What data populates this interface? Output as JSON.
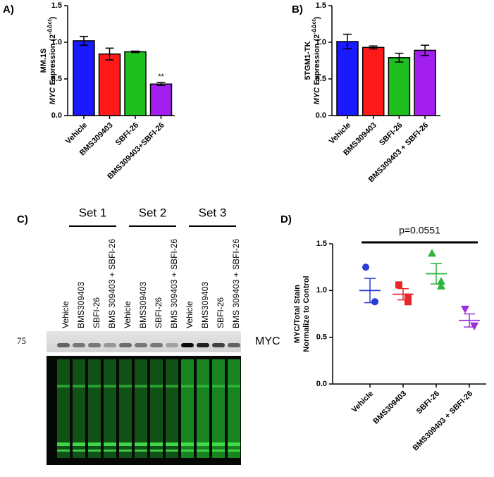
{
  "chart_data": [
    {
      "type": "bar",
      "panel_label": "A)",
      "ylabel": [
        "MM.1S",
        [
          "MYC",
          " Expression ",
          "(2",
          "-ΔΔct",
          ")"
        ]
      ],
      "categories": [
        "Vehicle",
        "BMS309403",
        "SBFI-26",
        "BMS309403+SBFI-26"
      ],
      "values": [
        1.02,
        0.84,
        0.87,
        0.43
      ],
      "errors": [
        0.06,
        0.08,
        0.01,
        0.02
      ],
      "colors": [
        "#1a1aff",
        "#ff1a1a",
        "#1fbf1f",
        "#a21ff0"
      ],
      "annotation": "**",
      "ylim": [
        0,
        1.5
      ],
      "yticks": [
        {
          "value": 0,
          "label": "0.0"
        },
        {
          "value": 0.5,
          "label": "0.5"
        },
        {
          "value": 1,
          "label": "1.0"
        },
        {
          "value": 1.5,
          "label": "1.5"
        }
      ]
    },
    {
      "type": "bar",
      "panel_label": "B)",
      "ylabel": [
        "5TGM1-TK",
        [
          "MYC",
          " Expression ",
          "(2",
          "-ΔΔct",
          ")"
        ]
      ],
      "categories": [
        "Vehicle",
        "BMS309403",
        "SBFI-26",
        "BMS309403 + SBFI-26"
      ],
      "values": [
        1.01,
        0.93,
        0.79,
        0.89
      ],
      "errors": [
        0.1,
        0.02,
        0.06,
        0.07
      ],
      "colors": [
        "#1a1aff",
        "#ff1a1a",
        "#1fbf1f",
        "#a21ff0"
      ],
      "ylim": [
        0,
        1.5
      ],
      "yticks": [
        {
          "value": 0,
          "label": "0.0"
        },
        {
          "value": 0.5,
          "label": "0.5"
        },
        {
          "value": 1,
          "label": "1.0"
        },
        {
          "value": 1.5,
          "label": "1.5"
        }
      ]
    },
    {
      "type": "dot",
      "panel_label": "D)",
      "ylabel": [
        "MYC/Total Stain",
        "Normalize to Control"
      ],
      "categories": [
        "Vehicle",
        "BMS309403",
        "SBFI-26",
        "BMS309403 + SBFI-26"
      ],
      "points": [
        [
          1.25,
          0.88,
          0.88
        ],
        [
          1.06,
          0.88,
          0.93
        ],
        [
          1.4,
          1.1,
          1.05
        ],
        [
          0.8,
          0.62,
          0.62
        ]
      ],
      "means": [
        1.0,
        0.96,
        1.18,
        0.68
      ],
      "errors": [
        0.13,
        0.06,
        0.11,
        0.07
      ],
      "colors": [
        "#2b3bd6",
        "#e8262b",
        "#2bb53b",
        "#9b30d9"
      ],
      "markers": [
        "circle",
        "square",
        "triangle",
        "triangle-down"
      ],
      "annotation": "p=0.0551",
      "ylim": [
        0,
        1.5
      ],
      "yticks": [
        {
          "value": 0,
          "label": "0.0"
        },
        {
          "value": 0.5,
          "label": "0.5"
        },
        {
          "value": 1,
          "label": "1.0"
        },
        {
          "value": 1.5,
          "label": "1.5"
        }
      ]
    }
  ],
  "blot": {
    "panel_label": "C)",
    "sets": [
      "Set 1",
      "Set 2",
      "Set 3"
    ],
    "lanes": [
      "Vehicle",
      "BMS309403",
      "SBFI-26",
      "BMS 309403 + SBFI-26",
      "Vehicle",
      "BMS309403",
      "SBFI-26",
      "BMS 309403 + SBFI-26",
      "Vehicle",
      "BMS309403",
      "SBFI-26",
      "BMS 309403 + SBFI-26"
    ],
    "marker": "75",
    "band_label": "MYC"
  }
}
